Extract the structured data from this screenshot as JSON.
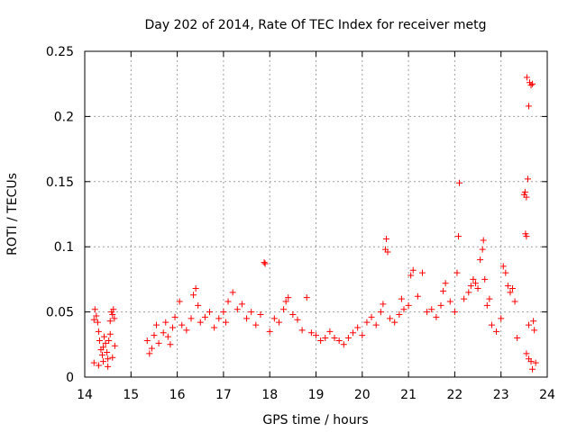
{
  "chart_data": {
    "type": "scatter",
    "title": "Day 202 of 2014, Rate Of TEC Index for receiver metg",
    "xlabel": "GPS time / hours",
    "ylabel": "ROTI / TECUs",
    "xlim": [
      14,
      24
    ],
    "ylim": [
      0,
      0.25
    ],
    "xticks": [
      14,
      15,
      16,
      17,
      18,
      19,
      20,
      21,
      22,
      23,
      24
    ],
    "xtick_labels": [
      "14",
      "15",
      "16",
      "17",
      "18",
      "19",
      "20",
      "21",
      "22",
      "23",
      "24"
    ],
    "yticks": [
      0,
      0.05,
      0.1,
      0.15,
      0.2,
      0.25
    ],
    "ytick_labels": [
      "0",
      "0.05",
      "0.1",
      "0.15",
      "0.2",
      "0.25"
    ],
    "grid": true,
    "marker": "+",
    "color": "#ff0000",
    "series": [
      {
        "name": "ROTI",
        "points": [
          [
            14.2,
            0.044
          ],
          [
            14.22,
            0.052
          ],
          [
            14.25,
            0.047
          ],
          [
            14.28,
            0.042
          ],
          [
            14.3,
            0.035
          ],
          [
            14.32,
            0.028
          ],
          [
            14.35,
            0.021
          ],
          [
            14.38,
            0.017
          ],
          [
            14.4,
            0.023
          ],
          [
            14.42,
            0.031
          ],
          [
            14.45,
            0.026
          ],
          [
            14.48,
            0.019
          ],
          [
            14.5,
            0.014
          ],
          [
            14.52,
            0.028
          ],
          [
            14.55,
            0.033
          ],
          [
            14.58,
            0.05
          ],
          [
            14.6,
            0.048
          ],
          [
            14.62,
            0.052
          ],
          [
            14.64,
            0.045
          ],
          [
            14.65,
            0.024
          ],
          [
            14.55,
            0.043
          ],
          [
            14.2,
            0.011
          ],
          [
            14.3,
            0.009
          ],
          [
            14.4,
            0.012
          ],
          [
            14.5,
            0.008
          ],
          [
            14.6,
            0.015
          ],
          [
            15.35,
            0.028
          ],
          [
            15.4,
            0.018
          ],
          [
            15.45,
            0.022
          ],
          [
            15.5,
            0.032
          ],
          [
            15.55,
            0.04
          ],
          [
            15.6,
            0.026
          ],
          [
            15.7,
            0.034
          ],
          [
            15.75,
            0.042
          ],
          [
            15.8,
            0.031
          ],
          [
            15.85,
            0.025
          ],
          [
            15.9,
            0.038
          ],
          [
            15.95,
            0.046
          ],
          [
            16.05,
            0.058
          ],
          [
            16.1,
            0.04
          ],
          [
            16.2,
            0.036
          ],
          [
            16.3,
            0.045
          ],
          [
            16.35,
            0.063
          ],
          [
            16.4,
            0.068
          ],
          [
            16.45,
            0.055
          ],
          [
            16.5,
            0.042
          ],
          [
            16.6,
            0.046
          ],
          [
            16.7,
            0.05
          ],
          [
            16.8,
            0.038
          ],
          [
            16.9,
            0.045
          ],
          [
            17.0,
            0.05
          ],
          [
            17.05,
            0.042
          ],
          [
            17.1,
            0.058
          ],
          [
            17.2,
            0.065
          ],
          [
            17.3,
            0.052
          ],
          [
            17.4,
            0.056
          ],
          [
            17.5,
            0.045
          ],
          [
            17.6,
            0.05
          ],
          [
            17.7,
            0.04
          ],
          [
            17.8,
            0.048
          ],
          [
            17.88,
            0.088
          ],
          [
            17.9,
            0.087
          ],
          [
            18.0,
            0.035
          ],
          [
            18.1,
            0.045
          ],
          [
            18.2,
            0.042
          ],
          [
            18.3,
            0.052
          ],
          [
            18.35,
            0.058
          ],
          [
            18.4,
            0.061
          ],
          [
            18.5,
            0.048
          ],
          [
            18.6,
            0.044
          ],
          [
            18.7,
            0.036
          ],
          [
            18.8,
            0.061
          ],
          [
            18.9,
            0.034
          ],
          [
            19.0,
            0.032
          ],
          [
            19.1,
            0.028
          ],
          [
            19.2,
            0.03
          ],
          [
            19.3,
            0.035
          ],
          [
            19.4,
            0.03
          ],
          [
            19.5,
            0.028
          ],
          [
            19.6,
            0.025
          ],
          [
            19.7,
            0.03
          ],
          [
            19.8,
            0.034
          ],
          [
            19.9,
            0.038
          ],
          [
            20.0,
            0.032
          ],
          [
            20.1,
            0.042
          ],
          [
            20.2,
            0.046
          ],
          [
            20.3,
            0.04
          ],
          [
            20.4,
            0.05
          ],
          [
            20.45,
            0.056
          ],
          [
            20.5,
            0.098
          ],
          [
            20.52,
            0.106
          ],
          [
            20.55,
            0.096
          ],
          [
            20.6,
            0.045
          ],
          [
            20.7,
            0.042
          ],
          [
            20.8,
            0.048
          ],
          [
            20.85,
            0.06
          ],
          [
            20.9,
            0.052
          ],
          [
            21.0,
            0.055
          ],
          [
            21.05,
            0.078
          ],
          [
            21.1,
            0.082
          ],
          [
            21.2,
            0.062
          ],
          [
            21.3,
            0.08
          ],
          [
            21.4,
            0.05
          ],
          [
            21.5,
            0.052
          ],
          [
            21.6,
            0.046
          ],
          [
            21.7,
            0.055
          ],
          [
            21.75,
            0.066
          ],
          [
            21.8,
            0.072
          ],
          [
            21.9,
            0.058
          ],
          [
            22.0,
            0.05
          ],
          [
            22.05,
            0.08
          ],
          [
            22.08,
            0.108
          ],
          [
            22.1,
            0.149
          ],
          [
            22.2,
            0.06
          ],
          [
            22.3,
            0.065
          ],
          [
            22.35,
            0.07
          ],
          [
            22.4,
            0.075
          ],
          [
            22.45,
            0.072
          ],
          [
            22.5,
            0.068
          ],
          [
            22.55,
            0.09
          ],
          [
            22.6,
            0.098
          ],
          [
            22.62,
            0.105
          ],
          [
            22.65,
            0.075
          ],
          [
            22.7,
            0.055
          ],
          [
            22.75,
            0.06
          ],
          [
            22.8,
            0.04
          ],
          [
            22.9,
            0.035
          ],
          [
            23.0,
            0.045
          ],
          [
            23.05,
            0.085
          ],
          [
            23.1,
            0.08
          ],
          [
            23.15,
            0.07
          ],
          [
            23.2,
            0.065
          ],
          [
            23.25,
            0.068
          ],
          [
            23.3,
            0.058
          ],
          [
            23.35,
            0.03
          ],
          [
            23.5,
            0.14
          ],
          [
            23.52,
            0.142
          ],
          [
            23.55,
            0.138
          ],
          [
            23.53,
            0.11
          ],
          [
            23.55,
            0.108
          ],
          [
            23.58,
            0.152
          ],
          [
            23.6,
            0.208
          ],
          [
            23.56,
            0.23
          ],
          [
            23.62,
            0.226
          ],
          [
            23.65,
            0.224
          ],
          [
            23.68,
            0.225
          ],
          [
            23.6,
            0.04
          ],
          [
            23.7,
            0.043
          ],
          [
            23.72,
            0.036
          ],
          [
            23.65,
            0.012
          ],
          [
            23.75,
            0.011
          ],
          [
            23.68,
            0.006
          ],
          [
            23.55,
            0.018
          ],
          [
            23.6,
            0.014
          ]
        ]
      }
    ]
  }
}
